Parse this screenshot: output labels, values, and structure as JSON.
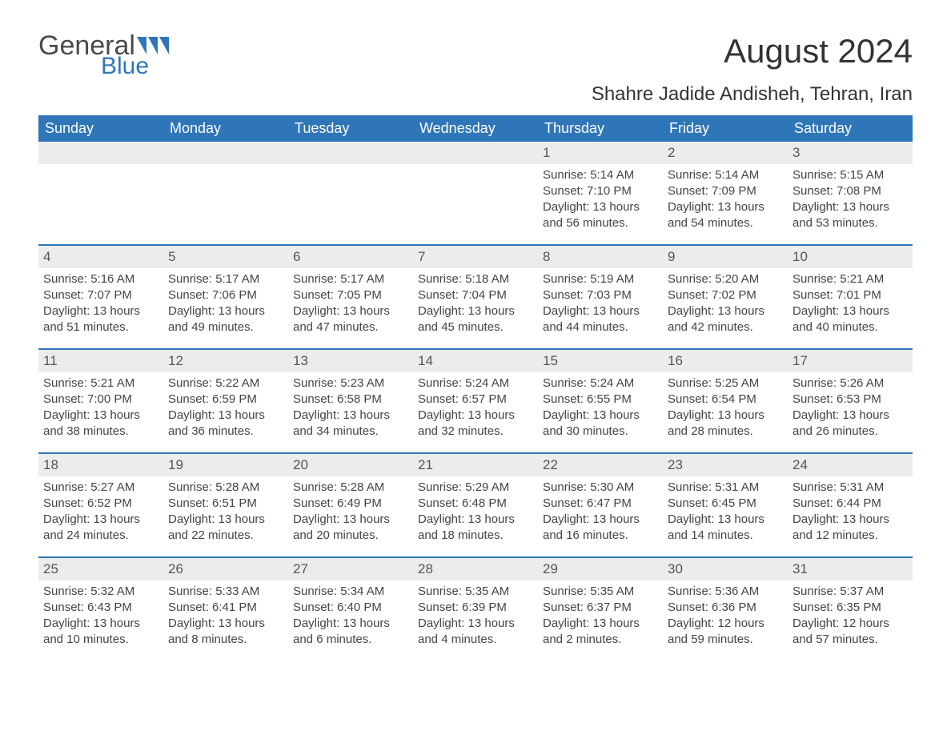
{
  "logo": {
    "general": "General",
    "blue": "Blue"
  },
  "title": "August 2024",
  "subtitle": "Shahre Jadide Andisheh, Tehran, Iran",
  "weekdays": [
    "Sunday",
    "Monday",
    "Tuesday",
    "Wednesday",
    "Thursday",
    "Friday",
    "Saturday"
  ],
  "colors": {
    "header_bg": "#2f76b8",
    "header_text": "#ffffff",
    "daynum_bg": "#ececec",
    "border": "#2f76b8",
    "text": "#3a3a3a",
    "logo_blue": "#2f76b8"
  },
  "weeks": [
    [
      {
        "n": "",
        "sunrise": "",
        "sunset": "",
        "daylight": ""
      },
      {
        "n": "",
        "sunrise": "",
        "sunset": "",
        "daylight": ""
      },
      {
        "n": "",
        "sunrise": "",
        "sunset": "",
        "daylight": ""
      },
      {
        "n": "",
        "sunrise": "",
        "sunset": "",
        "daylight": ""
      },
      {
        "n": "1",
        "sunrise": "Sunrise: 5:14 AM",
        "sunset": "Sunset: 7:10 PM",
        "daylight": "Daylight: 13 hours and 56 minutes."
      },
      {
        "n": "2",
        "sunrise": "Sunrise: 5:14 AM",
        "sunset": "Sunset: 7:09 PM",
        "daylight": "Daylight: 13 hours and 54 minutes."
      },
      {
        "n": "3",
        "sunrise": "Sunrise: 5:15 AM",
        "sunset": "Sunset: 7:08 PM",
        "daylight": "Daylight: 13 hours and 53 minutes."
      }
    ],
    [
      {
        "n": "4",
        "sunrise": "Sunrise: 5:16 AM",
        "sunset": "Sunset: 7:07 PM",
        "daylight": "Daylight: 13 hours and 51 minutes."
      },
      {
        "n": "5",
        "sunrise": "Sunrise: 5:17 AM",
        "sunset": "Sunset: 7:06 PM",
        "daylight": "Daylight: 13 hours and 49 minutes."
      },
      {
        "n": "6",
        "sunrise": "Sunrise: 5:17 AM",
        "sunset": "Sunset: 7:05 PM",
        "daylight": "Daylight: 13 hours and 47 minutes."
      },
      {
        "n": "7",
        "sunrise": "Sunrise: 5:18 AM",
        "sunset": "Sunset: 7:04 PM",
        "daylight": "Daylight: 13 hours and 45 minutes."
      },
      {
        "n": "8",
        "sunrise": "Sunrise: 5:19 AM",
        "sunset": "Sunset: 7:03 PM",
        "daylight": "Daylight: 13 hours and 44 minutes."
      },
      {
        "n": "9",
        "sunrise": "Sunrise: 5:20 AM",
        "sunset": "Sunset: 7:02 PM",
        "daylight": "Daylight: 13 hours and 42 minutes."
      },
      {
        "n": "10",
        "sunrise": "Sunrise: 5:21 AM",
        "sunset": "Sunset: 7:01 PM",
        "daylight": "Daylight: 13 hours and 40 minutes."
      }
    ],
    [
      {
        "n": "11",
        "sunrise": "Sunrise: 5:21 AM",
        "sunset": "Sunset: 7:00 PM",
        "daylight": "Daylight: 13 hours and 38 minutes."
      },
      {
        "n": "12",
        "sunrise": "Sunrise: 5:22 AM",
        "sunset": "Sunset: 6:59 PM",
        "daylight": "Daylight: 13 hours and 36 minutes."
      },
      {
        "n": "13",
        "sunrise": "Sunrise: 5:23 AM",
        "sunset": "Sunset: 6:58 PM",
        "daylight": "Daylight: 13 hours and 34 minutes."
      },
      {
        "n": "14",
        "sunrise": "Sunrise: 5:24 AM",
        "sunset": "Sunset: 6:57 PM",
        "daylight": "Daylight: 13 hours and 32 minutes."
      },
      {
        "n": "15",
        "sunrise": "Sunrise: 5:24 AM",
        "sunset": "Sunset: 6:55 PM",
        "daylight": "Daylight: 13 hours and 30 minutes."
      },
      {
        "n": "16",
        "sunrise": "Sunrise: 5:25 AM",
        "sunset": "Sunset: 6:54 PM",
        "daylight": "Daylight: 13 hours and 28 minutes."
      },
      {
        "n": "17",
        "sunrise": "Sunrise: 5:26 AM",
        "sunset": "Sunset: 6:53 PM",
        "daylight": "Daylight: 13 hours and 26 minutes."
      }
    ],
    [
      {
        "n": "18",
        "sunrise": "Sunrise: 5:27 AM",
        "sunset": "Sunset: 6:52 PM",
        "daylight": "Daylight: 13 hours and 24 minutes."
      },
      {
        "n": "19",
        "sunrise": "Sunrise: 5:28 AM",
        "sunset": "Sunset: 6:51 PM",
        "daylight": "Daylight: 13 hours and 22 minutes."
      },
      {
        "n": "20",
        "sunrise": "Sunrise: 5:28 AM",
        "sunset": "Sunset: 6:49 PM",
        "daylight": "Daylight: 13 hours and 20 minutes."
      },
      {
        "n": "21",
        "sunrise": "Sunrise: 5:29 AM",
        "sunset": "Sunset: 6:48 PM",
        "daylight": "Daylight: 13 hours and 18 minutes."
      },
      {
        "n": "22",
        "sunrise": "Sunrise: 5:30 AM",
        "sunset": "Sunset: 6:47 PM",
        "daylight": "Daylight: 13 hours and 16 minutes."
      },
      {
        "n": "23",
        "sunrise": "Sunrise: 5:31 AM",
        "sunset": "Sunset: 6:45 PM",
        "daylight": "Daylight: 13 hours and 14 minutes."
      },
      {
        "n": "24",
        "sunrise": "Sunrise: 5:31 AM",
        "sunset": "Sunset: 6:44 PM",
        "daylight": "Daylight: 13 hours and 12 minutes."
      }
    ],
    [
      {
        "n": "25",
        "sunrise": "Sunrise: 5:32 AM",
        "sunset": "Sunset: 6:43 PM",
        "daylight": "Daylight: 13 hours and 10 minutes."
      },
      {
        "n": "26",
        "sunrise": "Sunrise: 5:33 AM",
        "sunset": "Sunset: 6:41 PM",
        "daylight": "Daylight: 13 hours and 8 minutes."
      },
      {
        "n": "27",
        "sunrise": "Sunrise: 5:34 AM",
        "sunset": "Sunset: 6:40 PM",
        "daylight": "Daylight: 13 hours and 6 minutes."
      },
      {
        "n": "28",
        "sunrise": "Sunrise: 5:35 AM",
        "sunset": "Sunset: 6:39 PM",
        "daylight": "Daylight: 13 hours and 4 minutes."
      },
      {
        "n": "29",
        "sunrise": "Sunrise: 5:35 AM",
        "sunset": "Sunset: 6:37 PM",
        "daylight": "Daylight: 13 hours and 2 minutes."
      },
      {
        "n": "30",
        "sunrise": "Sunrise: 5:36 AM",
        "sunset": "Sunset: 6:36 PM",
        "daylight": "Daylight: 12 hours and 59 minutes."
      },
      {
        "n": "31",
        "sunrise": "Sunrise: 5:37 AM",
        "sunset": "Sunset: 6:35 PM",
        "daylight": "Daylight: 12 hours and 57 minutes."
      }
    ]
  ]
}
